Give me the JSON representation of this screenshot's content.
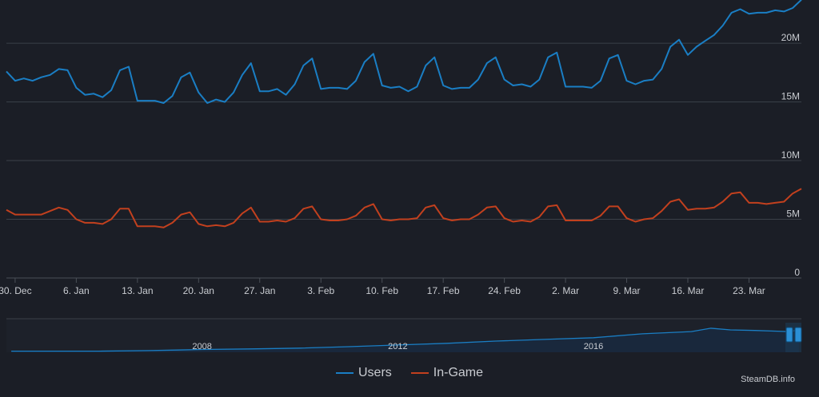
{
  "colors": {
    "users": "#1a7ec4",
    "in_game": "#c2401e",
    "background": "#1b1e26",
    "grid": "#3b4048",
    "text": "#c9ccd1"
  },
  "legend": {
    "users": "Users",
    "in_game": "In-Game"
  },
  "credit": "SteamDB.info",
  "chart_data": [
    {
      "type": "line",
      "x_axis_type": "date",
      "x_start": "2019-12-29",
      "x_step_days": 1,
      "y_tick_labels": [
        "0",
        "5M",
        "10M",
        "15M",
        "20M"
      ],
      "x_tick_labels": [
        {
          "label": "30. Dec",
          "date": "2019-12-30"
        },
        {
          "label": "6. Jan",
          "date": "2020-01-06"
        },
        {
          "label": "13. Jan",
          "date": "2020-01-13"
        },
        {
          "label": "20. Jan",
          "date": "2020-01-20"
        },
        {
          "label": "27. Jan",
          "date": "2020-01-27"
        },
        {
          "label": "3. Feb",
          "date": "2020-02-03"
        },
        {
          "label": "10. Feb",
          "date": "2020-02-10"
        },
        {
          "label": "17. Feb",
          "date": "2020-02-17"
        },
        {
          "label": "24. Feb",
          "date": "2020-02-24"
        },
        {
          "label": "2. Mar",
          "date": "2020-03-02"
        },
        {
          "label": "9. Mar",
          "date": "2020-03-09"
        },
        {
          "label": "16. Mar",
          "date": "2020-03-16"
        },
        {
          "label": "23. Mar",
          "date": "2020-03-23"
        }
      ],
      "ylim": [
        0,
        23000000
      ],
      "grid": true,
      "legend_position": "bottom",
      "series": [
        {
          "name": "Users",
          "values": [
            17.6,
            16.8,
            17.0,
            16.8,
            17.1,
            17.3,
            17.8,
            17.7,
            16.2,
            15.6,
            15.7,
            15.4,
            16.0,
            17.7,
            18.0,
            15.1,
            15.1,
            15.1,
            14.9,
            15.5,
            17.1,
            17.5,
            15.8,
            14.9,
            15.2,
            15.0,
            15.8,
            17.3,
            18.3,
            15.9,
            15.9,
            16.1,
            15.6,
            16.5,
            18.1,
            18.7,
            16.1,
            16.2,
            16.2,
            16.1,
            16.8,
            18.4,
            19.1,
            16.4,
            16.2,
            16.3,
            15.9,
            16.3,
            18.1,
            18.8,
            16.4,
            16.1,
            16.2,
            16.2,
            16.9,
            18.3,
            18.8,
            16.9,
            16.4,
            16.5,
            16.3,
            16.9,
            18.8,
            19.2,
            16.3,
            16.3,
            16.3,
            16.2,
            16.8,
            18.7,
            19.0,
            16.8,
            16.5,
            16.8,
            16.9,
            17.8,
            19.7,
            20.3,
            19.0,
            19.7,
            20.2,
            20.7,
            21.5,
            22.6,
            22.9,
            22.5,
            22.6,
            22.6,
            22.8,
            22.7,
            23.0,
            23.7
          ]
        },
        {
          "name": "In-Game",
          "values": [
            5.8,
            5.4,
            5.4,
            5.4,
            5.4,
            5.7,
            6.0,
            5.8,
            5.0,
            4.7,
            4.7,
            4.6,
            5.0,
            5.9,
            5.9,
            4.4,
            4.4,
            4.4,
            4.3,
            4.7,
            5.4,
            5.6,
            4.6,
            4.4,
            4.5,
            4.4,
            4.7,
            5.5,
            6.0,
            4.8,
            4.8,
            4.9,
            4.8,
            5.1,
            5.9,
            6.1,
            5.0,
            4.9,
            4.9,
            5.0,
            5.3,
            6.0,
            6.3,
            5.0,
            4.9,
            5.0,
            5.0,
            5.1,
            6.0,
            6.2,
            5.1,
            4.9,
            5.0,
            5.0,
            5.4,
            6.0,
            6.1,
            5.1,
            4.8,
            4.9,
            4.8,
            5.2,
            6.1,
            6.2,
            4.9,
            4.9,
            4.9,
            4.9,
            5.3,
            6.1,
            6.1,
            5.1,
            4.8,
            5.0,
            5.1,
            5.7,
            6.5,
            6.7,
            5.8,
            5.9,
            5.9,
            6.0,
            6.5,
            7.2,
            7.3,
            6.4,
            6.4,
            6.3,
            6.4,
            6.5,
            7.2,
            7.6
          ]
        }
      ],
      "value_unit": "millions"
    },
    {
      "type": "area",
      "role": "navigator",
      "x_tick_labels": [
        "2008",
        "2012",
        "2016"
      ],
      "x_range_years": [
        2004,
        2020.25
      ],
      "series": [
        {
          "name": "Users",
          "points": [
            [
              2004.1,
              0.4
            ],
            [
              2005.9,
              0.4
            ],
            [
              2006.9,
              0.6
            ],
            [
              2007.5,
              0.8
            ],
            [
              2008.0,
              1.0
            ],
            [
              2009.0,
              1.2
            ],
            [
              2010.0,
              1.5
            ],
            [
              2011.0,
              2.0
            ],
            [
              2012.0,
              2.6
            ],
            [
              2013.0,
              3.2
            ],
            [
              2014.0,
              4.0
            ],
            [
              2015.0,
              4.6
            ],
            [
              2016.0,
              5.2
            ],
            [
              2017.0,
              6.6
            ],
            [
              2018.0,
              7.4
            ],
            [
              2018.4,
              8.6
            ],
            [
              2018.8,
              8.0
            ],
            [
              2019.3,
              7.8
            ],
            [
              2020.0,
              7.4
            ],
            [
              2020.2,
              8.0
            ]
          ]
        }
      ]
    }
  ]
}
